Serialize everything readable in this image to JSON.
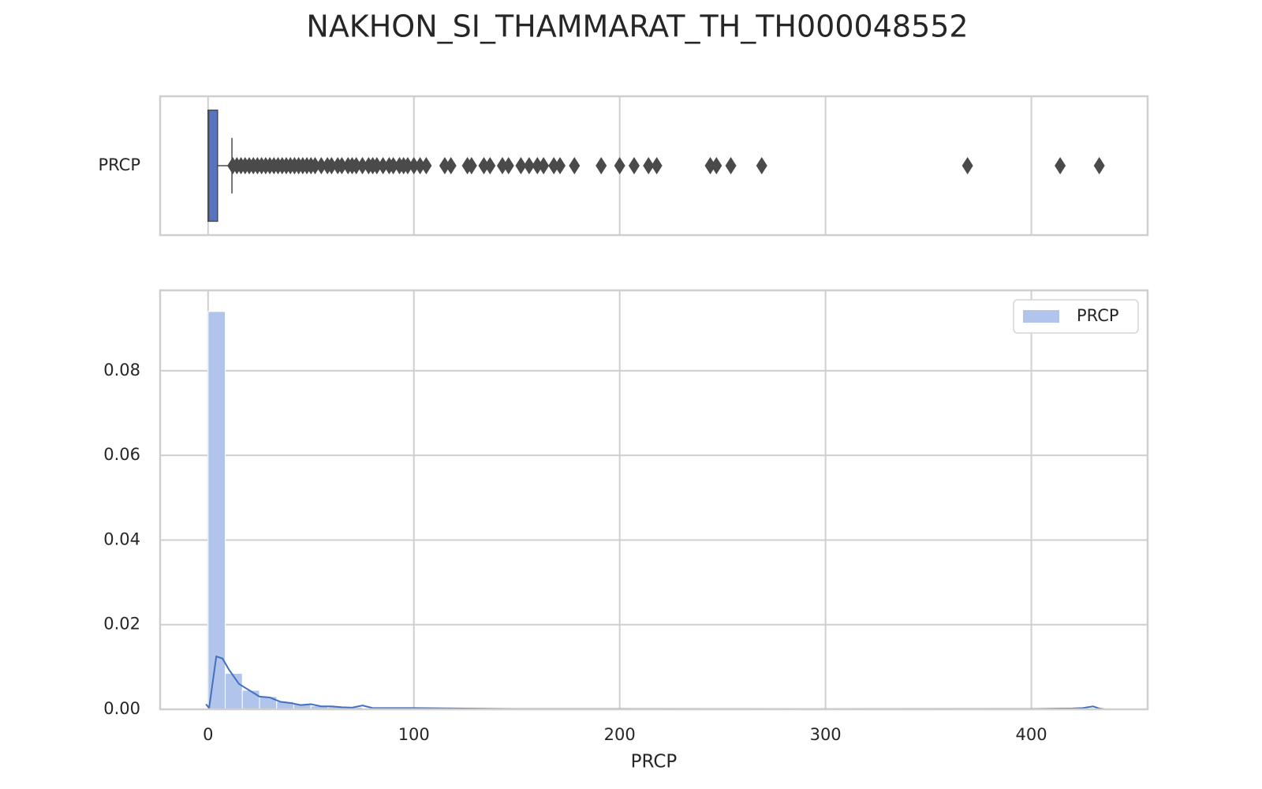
{
  "chart_data": [
    {
      "type": "box",
      "title": "NAKHON_SI_THAMMARAT_TH_TH000048552",
      "categories": [
        "PRCP"
      ],
      "color": "#5874bf",
      "outlier_color": "#4a4a4a",
      "boxes": [
        {
          "min": 0,
          "q1": 0,
          "median": 0.3,
          "q3": 4.6,
          "max": 11.6,
          "outliers": [
            12,
            14,
            16,
            18,
            20,
            22,
            24,
            26,
            28,
            30,
            32,
            34,
            36,
            38,
            40,
            42,
            44,
            46,
            48,
            50,
            52,
            55,
            58,
            60,
            63,
            65,
            68,
            70,
            72,
            75,
            78,
            80,
            82,
            85,
            88,
            90,
            93,
            95,
            97,
            100,
            103,
            106,
            115,
            118,
            126,
            128,
            134,
            137,
            143,
            146,
            152,
            156,
            160,
            163,
            168,
            171,
            178,
            191,
            200,
            207,
            214,
            218,
            244,
            247,
            254,
            269,
            369,
            414,
            433
          ]
        }
      ],
      "xlim": [
        -23.3,
        456.5
      ],
      "xticks": [
        0,
        100,
        200,
        300,
        400
      ],
      "grid": true
    },
    {
      "type": "histogram",
      "x_label": "PRCP",
      "series": [
        {
          "name": "PRCP",
          "color": "#b0c4ec",
          "bins": [
            0,
            8.33,
            16.65,
            24.98,
            33.31,
            41.63,
            49.96,
            58.29,
            66.62,
            74.94,
            83.27,
            91.6,
            99.92,
            108.25,
            116.58,
            124.9,
            133.23,
            141.56,
            149.88,
            158.21,
            166.54,
            174.87,
            183.19,
            191.52,
            199.85,
            208.17,
            216.5,
            224.83,
            233.15,
            241.48,
            249.81,
            258.13,
            266.46,
            274.79,
            283.12,
            291.44,
            299.77,
            308.1,
            316.42,
            324.75,
            333.08,
            341.4,
            349.73,
            358.06,
            366.38,
            374.71,
            383.04,
            391.37,
            399.69,
            408.02,
            416.35,
            424.67,
            433
          ],
          "counts": [
            0.094,
            0.0085,
            0.0045,
            0.003,
            0.0018,
            0.0012,
            0.0008,
            0.0006,
            0.0005,
            0.0003,
            0.0003,
            0.0002,
            0.0001,
            0.0001,
            0.0001,
            0.0001,
            0.0001,
            0.0001,
            0.0001,
            0.0001,
            0.0001,
            0.0001,
            0.0001,
            0,
            0.0001,
            0.0001,
            0.0001,
            0,
            0,
            0.0001,
            0.0001,
            0,
            0.0001,
            0,
            0,
            0,
            0,
            0,
            0,
            0,
            0,
            0,
            0,
            0,
            0.0001,
            0,
            0,
            0,
            0,
            0.0001,
            0,
            0.0001
          ]
        }
      ],
      "kde": {
        "color": "#4470c0",
        "x": [
          -1,
          0.5,
          4,
          7,
          10,
          15,
          20,
          25,
          30,
          35,
          40,
          45,
          50,
          55,
          60,
          65,
          70,
          75,
          80,
          90,
          100,
          120,
          150,
          200,
          300,
          400,
          420,
          425,
          430,
          433,
          436
        ],
        "y": [
          0.0012,
          0.0003,
          0.0125,
          0.012,
          0.0095,
          0.006,
          0.0045,
          0.003,
          0.0028,
          0.0018,
          0.0015,
          0.001,
          0.0012,
          0.0007,
          0.0007,
          0.0005,
          0.0004,
          0.0009,
          0.0003,
          0.0003,
          0.0003,
          0.0002,
          0.0001,
          0.0001,
          5e-05,
          0.0001,
          0.0002,
          0.0003,
          0.0007,
          0.0002,
          0
        ]
      },
      "xlim": [
        -23.3,
        456.5
      ],
      "ylim": [
        0,
        0.099
      ],
      "xticks": [
        0,
        100,
        200,
        300,
        400
      ],
      "yticks": [
        {
          "value": 0,
          "label": "0.00"
        },
        0.02,
        0.04,
        0.06,
        0.08
      ],
      "grid": true,
      "legend": "upper right"
    }
  ]
}
